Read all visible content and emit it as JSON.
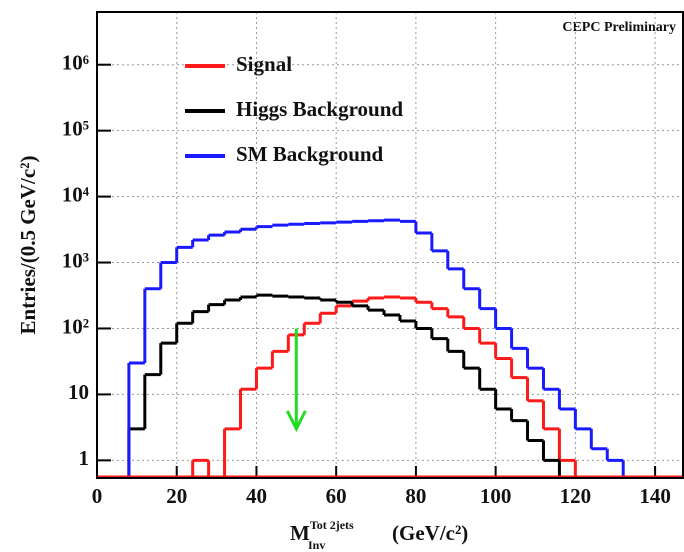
{
  "chart_data": {
    "type": "histogram",
    "annotation": "CEPC Preliminary",
    "xlabel": {
      "symbol": "M",
      "sup": "Tot 2jets",
      "sub": "Inv",
      "unit": "(GeV/c²)"
    },
    "ylabel": "Entries/(0.5 GeV/c²)",
    "bins": [
      0,
      4,
      8,
      12,
      16,
      20,
      24,
      28,
      32,
      36,
      40,
      44,
      48,
      52,
      56,
      60,
      64,
      68,
      72,
      76,
      80,
      84,
      88,
      92,
      96,
      100,
      104,
      108,
      112,
      116,
      120,
      124,
      128,
      132,
      136,
      140,
      144
    ],
    "series": [
      {
        "name": "Signal",
        "color": "#ff1a1a",
        "values": [
          null,
          null,
          null,
          null,
          null,
          null,
          1,
          null,
          3,
          12,
          25,
          45,
          80,
          120,
          170,
          220,
          260,
          290,
          300,
          290,
          250,
          200,
          150,
          100,
          60,
          35,
          18,
          8,
          3,
          1,
          null,
          null,
          null,
          null,
          null,
          null
        ]
      },
      {
        "name": "Higgs Background",
        "color": "#000000",
        "values": [
          null,
          null,
          3,
          20,
          60,
          120,
          180,
          230,
          270,
          300,
          320,
          310,
          300,
          290,
          270,
          250,
          220,
          190,
          160,
          130,
          100,
          70,
          45,
          25,
          12,
          6,
          4,
          2,
          1,
          null,
          null,
          null,
          null,
          null,
          null,
          null
        ]
      },
      {
        "name": "SM Background",
        "color": "#1a1aff",
        "values": [
          null,
          null,
          30,
          400,
          1000,
          1700,
          2200,
          2600,
          2900,
          3200,
          3500,
          3700,
          3800,
          3900,
          4000,
          4100,
          4200,
          4300,
          4400,
          4200,
          2800,
          1500,
          800,
          400,
          200,
          100,
          50,
          25,
          12,
          6,
          3,
          1.5,
          1,
          null,
          null,
          null
        ]
      }
    ],
    "arrow": {
      "x": 50,
      "from": 100,
      "to": 3,
      "color": "#22dd22"
    },
    "xlim": [
      0,
      147
    ],
    "xticks": [
      0,
      20,
      40,
      60,
      80,
      100,
      120,
      140
    ],
    "ylim": [
      0.54,
      6300000
    ],
    "log_y": true,
    "yticks": [
      1,
      10,
      {
        "value": 100,
        "label": "10²"
      },
      {
        "value": 1000,
        "label": "10³"
      },
      {
        "value": 10000,
        "label": "10⁴"
      },
      {
        "value": 100000,
        "label": "10⁵"
      },
      {
        "value": 1000000,
        "label": "10⁶"
      }
    ],
    "grid": true,
    "legend": "upper left"
  }
}
